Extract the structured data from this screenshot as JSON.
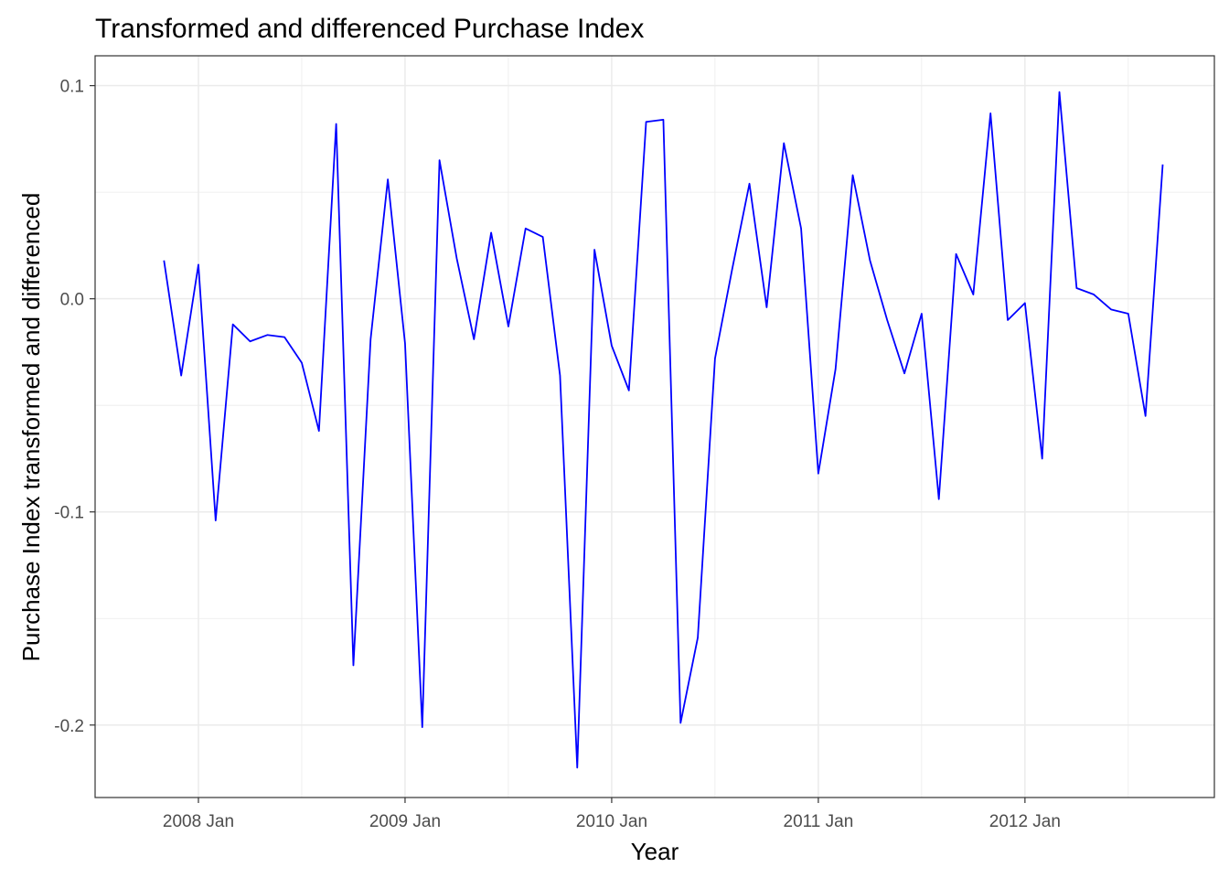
{
  "chart_data": {
    "type": "line",
    "title": "Transformed and differenced Purchase Index",
    "xlabel": "Year",
    "ylabel": "Purchase Index transformed and differenced",
    "x_tick_labels": [
      "2008 Jan",
      "2009 Jan",
      "2010 Jan",
      "2011 Jan",
      "2012 Jan"
    ],
    "x_tick_dates": [
      "2008-01",
      "2009-01",
      "2010-01",
      "2011-01",
      "2012-01"
    ],
    "y_tick_labels": [
      "0.1",
      "0.0",
      "-0.1",
      "-0.2"
    ],
    "y_tick_values": [
      0.1,
      0.0,
      -0.1,
      -0.2
    ],
    "xlim": [
      "2007-07",
      "2012-12"
    ],
    "ylim": [
      -0.234,
      0.114
    ],
    "grid": true,
    "line_color": "#0000ff",
    "series": [
      {
        "x": [
          "2007-11",
          "2007-12",
          "2008-01",
          "2008-02",
          "2008-03",
          "2008-04",
          "2008-05",
          "2008-06",
          "2008-07",
          "2008-08",
          "2008-09",
          "2008-10",
          "2008-11",
          "2008-12",
          "2009-01",
          "2009-02",
          "2009-03",
          "2009-04",
          "2009-05",
          "2009-06",
          "2009-07",
          "2009-08",
          "2009-09",
          "2009-10",
          "2009-11",
          "2009-12",
          "2010-01",
          "2010-02",
          "2010-03",
          "2010-04",
          "2010-05",
          "2010-06",
          "2010-07",
          "2010-08",
          "2010-09",
          "2010-10",
          "2010-11",
          "2010-12",
          "2011-01",
          "2011-02",
          "2011-03",
          "2011-04",
          "2011-05",
          "2011-06",
          "2011-07",
          "2011-08",
          "2011-09",
          "2011-10",
          "2011-11",
          "2011-12",
          "2012-01",
          "2012-02",
          "2012-03",
          "2012-04",
          "2012-05",
          "2012-06",
          "2012-07",
          "2012-08",
          "2012-09"
        ],
        "values": [
          0.018,
          -0.036,
          0.016,
          -0.104,
          -0.012,
          -0.02,
          -0.017,
          -0.018,
          -0.03,
          -0.062,
          0.082,
          -0.172,
          -0.019,
          0.056,
          -0.021,
          -0.201,
          0.065,
          0.019,
          -0.019,
          0.031,
          -0.013,
          0.033,
          0.029,
          -0.036,
          -0.22,
          0.023,
          -0.022,
          -0.043,
          0.083,
          0.084,
          -0.199,
          -0.159,
          -0.028,
          0.014,
          0.054,
          -0.004,
          0.073,
          0.033,
          -0.082,
          -0.033,
          0.058,
          0.018,
          -0.01,
          -0.035,
          -0.007,
          -0.094,
          0.021,
          0.002,
          0.087,
          -0.01,
          -0.002,
          -0.075,
          0.097,
          0.005,
          0.002,
          -0.005,
          -0.007,
          -0.055,
          0.063
        ]
      }
    ]
  }
}
